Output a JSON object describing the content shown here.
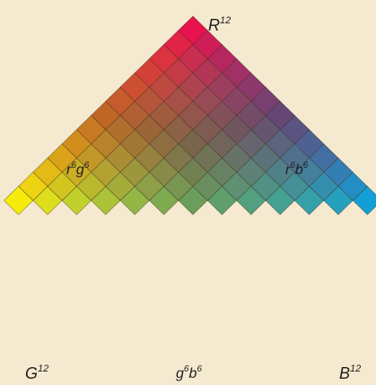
{
  "background": "#f5e9cf",
  "edge_color": "#3a2a1a",
  "grid_steps": 12,
  "corner_colors": {
    "top": "#e8124f",
    "bottom_left": "#f6ec0c",
    "bottom_right": "#139fd6"
  },
  "labels": {
    "top": {
      "base": "R",
      "sup": "12"
    },
    "left_mid": {
      "p1": "r",
      "s1": "6",
      "p2": "g",
      "s2": "6"
    },
    "right_mid": {
      "p1": "r",
      "s1": "6",
      "p2": "b",
      "s2": "6"
    },
    "bottom_left": {
      "base": "G",
      "sup": "12"
    },
    "bottom_mid": {
      "p1": "g",
      "s1": "6",
      "p2": "b",
      "s2": "6"
    },
    "bottom_right": {
      "base": "B",
      "sup": "12"
    }
  }
}
